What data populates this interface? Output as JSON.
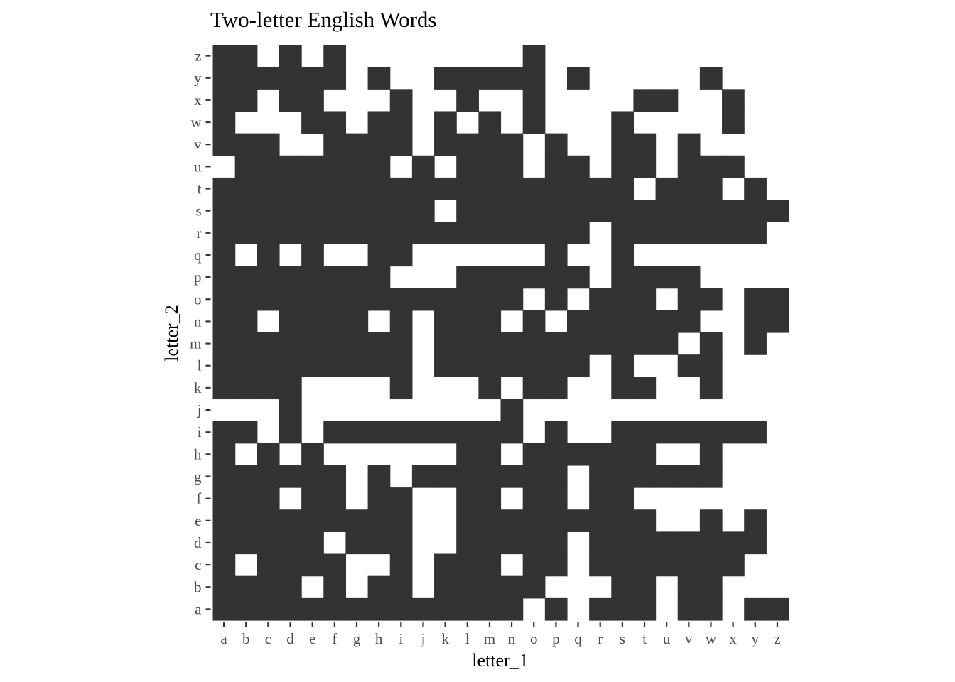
{
  "chart_data": {
    "type": "heatmap",
    "title": "Two-letter English Words",
    "xlabel": "letter_1",
    "ylabel": "letter_2",
    "x_categories": [
      "a",
      "b",
      "c",
      "d",
      "e",
      "f",
      "g",
      "h",
      "i",
      "j",
      "k",
      "l",
      "m",
      "n",
      "o",
      "p",
      "q",
      "r",
      "s",
      "t",
      "u",
      "v",
      "w",
      "x",
      "y",
      "z"
    ],
    "y_categories": [
      "a",
      "b",
      "c",
      "d",
      "e",
      "f",
      "g",
      "h",
      "i",
      "j",
      "k",
      "l",
      "m",
      "n",
      "o",
      "p",
      "q",
      "r",
      "s",
      "t",
      "u",
      "v",
      "w",
      "x",
      "y",
      "z"
    ],
    "fill_color": "#333333",
    "empty_color": "#ffffff",
    "grid": false,
    "words_by_letter_2": {
      "z": [
        "a",
        "b",
        "d",
        "f",
        "o"
      ],
      "y": [
        "a",
        "b",
        "c",
        "d",
        "e",
        "f",
        "h",
        "k",
        "l",
        "m",
        "n",
        "o",
        "q",
        "w"
      ],
      "x": [
        "a",
        "b",
        "d",
        "e",
        "i",
        "l",
        "o",
        "t",
        "u",
        "x"
      ],
      "w": [
        "a",
        "e",
        "f",
        "h",
        "i",
        "k",
        "m",
        "o",
        "s",
        "x"
      ],
      "v": [
        "a",
        "b",
        "c",
        "f",
        "g",
        "h",
        "i",
        "k",
        "l",
        "m",
        "n",
        "p",
        "s",
        "t",
        "v"
      ],
      "u": [
        "b",
        "c",
        "d",
        "e",
        "f",
        "g",
        "h",
        "j",
        "l",
        "m",
        "n",
        "p",
        "q",
        "s",
        "t",
        "v",
        "w",
        "x"
      ],
      "t": [
        "a",
        "b",
        "c",
        "d",
        "e",
        "f",
        "g",
        "h",
        "i",
        "j",
        "k",
        "l",
        "m",
        "n",
        "o",
        "p",
        "q",
        "r",
        "s",
        "u",
        "v",
        "w",
        "y"
      ],
      "s": [
        "a",
        "b",
        "c",
        "d",
        "e",
        "f",
        "g",
        "h",
        "i",
        "j",
        "l",
        "m",
        "n",
        "o",
        "p",
        "q",
        "r",
        "s",
        "t",
        "u",
        "v",
        "w",
        "x",
        "y",
        "z"
      ],
      "r": [
        "a",
        "b",
        "c",
        "d",
        "e",
        "f",
        "g",
        "h",
        "i",
        "j",
        "k",
        "l",
        "m",
        "n",
        "o",
        "p",
        "q",
        "s",
        "t",
        "u",
        "v",
        "w",
        "x",
        "y"
      ],
      "q": [
        "a",
        "c",
        "e",
        "h",
        "i",
        "p",
        "s"
      ],
      "p": [
        "a",
        "b",
        "c",
        "d",
        "e",
        "f",
        "g",
        "h",
        "l",
        "m",
        "n",
        "o",
        "p",
        "q",
        "s",
        "t",
        "u",
        "v"
      ],
      "o": [
        "a",
        "b",
        "c",
        "d",
        "e",
        "f",
        "g",
        "h",
        "i",
        "j",
        "k",
        "l",
        "m",
        "n",
        "p",
        "r",
        "s",
        "t",
        "v",
        "w",
        "y",
        "z"
      ],
      "n": [
        "a",
        "b",
        "d",
        "e",
        "f",
        "g",
        "i",
        "k",
        "l",
        "m",
        "o",
        "q",
        "r",
        "s",
        "t",
        "u",
        "v",
        "y",
        "z"
      ],
      "m": [
        "a",
        "b",
        "c",
        "d",
        "e",
        "f",
        "g",
        "h",
        "i",
        "k",
        "l",
        "m",
        "n",
        "o",
        "p",
        "q",
        "r",
        "s",
        "t",
        "u",
        "w",
        "y"
      ],
      "l": [
        "a",
        "b",
        "c",
        "d",
        "e",
        "f",
        "g",
        "h",
        "i",
        "k",
        "l",
        "m",
        "n",
        "o",
        "p",
        "q",
        "s",
        "v",
        "w"
      ],
      "k": [
        "a",
        "b",
        "c",
        "d",
        "i",
        "m",
        "o",
        "p",
        "s",
        "t",
        "w"
      ],
      "j": [
        "d",
        "n"
      ],
      "i": [
        "a",
        "b",
        "d",
        "f",
        "g",
        "h",
        "i",
        "j",
        "k",
        "l",
        "m",
        "n",
        "p",
        "s",
        "t",
        "u",
        "v",
        "w",
        "x",
        "y"
      ],
      "h": [
        "a",
        "c",
        "e",
        "l",
        "m",
        "o",
        "p",
        "q",
        "r",
        "s",
        "t",
        "w"
      ],
      "g": [
        "a",
        "b",
        "c",
        "d",
        "e",
        "f",
        "h",
        "j",
        "k",
        "l",
        "m",
        "n",
        "o",
        "p",
        "r",
        "s",
        "t",
        "u",
        "v",
        "w"
      ],
      "f": [
        "a",
        "b",
        "c",
        "e",
        "f",
        "h",
        "i",
        "l",
        "m",
        "o",
        "p",
        "r",
        "s"
      ],
      "e": [
        "a",
        "b",
        "c",
        "d",
        "e",
        "f",
        "g",
        "h",
        "i",
        "l",
        "m",
        "n",
        "o",
        "p",
        "q",
        "r",
        "s",
        "t",
        "w",
        "y"
      ],
      "d": [
        "a",
        "b",
        "c",
        "d",
        "e",
        "g",
        "h",
        "i",
        "l",
        "m",
        "n",
        "o",
        "p",
        "r",
        "s",
        "t",
        "u",
        "v",
        "w",
        "x",
        "y"
      ],
      "c": [
        "a",
        "c",
        "d",
        "e",
        "f",
        "i",
        "k",
        "l",
        "m",
        "o",
        "p",
        "r",
        "s",
        "t",
        "u",
        "v",
        "w",
        "x"
      ],
      "b": [
        "a",
        "b",
        "c",
        "d",
        "f",
        "h",
        "i",
        "k",
        "l",
        "m",
        "n",
        "o",
        "s",
        "t",
        "v",
        "w"
      ],
      "a": [
        "a",
        "b",
        "c",
        "d",
        "e",
        "f",
        "g",
        "h",
        "i",
        "j",
        "k",
        "l",
        "m",
        "n",
        "p",
        "r",
        "s",
        "t",
        "v",
        "w",
        "y",
        "z"
      ]
    }
  }
}
